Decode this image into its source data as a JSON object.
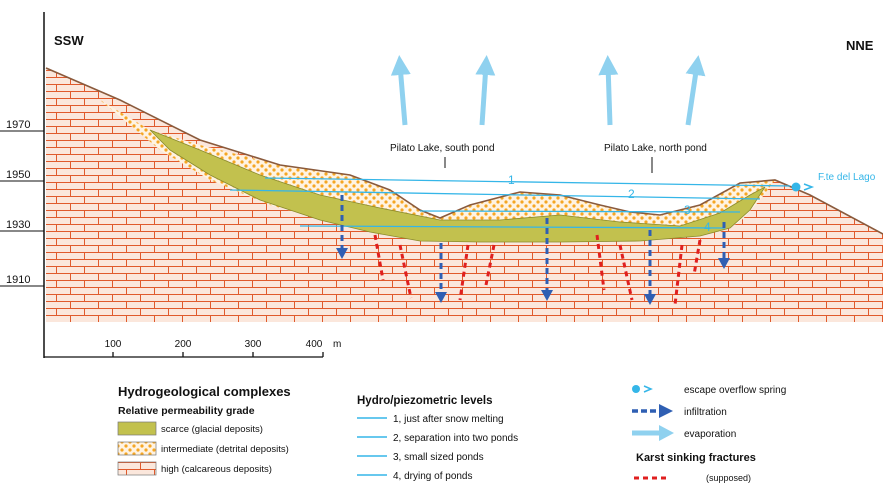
{
  "direction": {
    "left": "SSW",
    "right": "NNE"
  },
  "elevations": [
    "1970",
    "1950",
    "1930",
    "1910"
  ],
  "scale": {
    "ticks": [
      "100",
      "200",
      "300",
      "400"
    ],
    "unit": "m"
  },
  "labels": {
    "south_pond": "Pilato Lake, south pond",
    "north_pond": "Pilato Lake, north pond",
    "spring": "F.te del Lago"
  },
  "level_numbers": [
    "1",
    "2",
    "3",
    "4"
  ],
  "legend": {
    "complexes_title": "Hydrogeological complexes",
    "permeability_title": "Relative permeability grade",
    "permeability": [
      {
        "label": "scarce (glacial deposits)",
        "pattern": "scarce"
      },
      {
        "label": "intermediate (detrital deposits)",
        "pattern": "intermediate"
      },
      {
        "label": "high (calcareous deposits)",
        "pattern": "high"
      }
    ],
    "levels_title": "Hydro/piezometric levels",
    "levels": [
      "1, just after snow melting",
      "2, separation into two ponds",
      "3, small sized ponds",
      "4, drying of ponds"
    ],
    "symbols": [
      {
        "label": "escape overflow spring",
        "icon": "spring-icon"
      },
      {
        "label": "infiltration",
        "icon": "infiltration-arrow-icon"
      },
      {
        "label": "evaporation",
        "icon": "evaporation-arrow-icon"
      }
    ],
    "karst_title": "Karst sinking fractures",
    "karst_note": "(supposed)"
  },
  "colors": {
    "limestone_fill": "#fbe7dc",
    "limestone_line": "#e05a2c",
    "glacial": "#c2c14e",
    "detrital_dot": "#f5a623",
    "water_line": "#35b6e8",
    "infiltration": "#2f5fb3",
    "karst": "#e01f1f",
    "evaporation": "#8fd1ef",
    "surface": "#8a5a3c"
  }
}
